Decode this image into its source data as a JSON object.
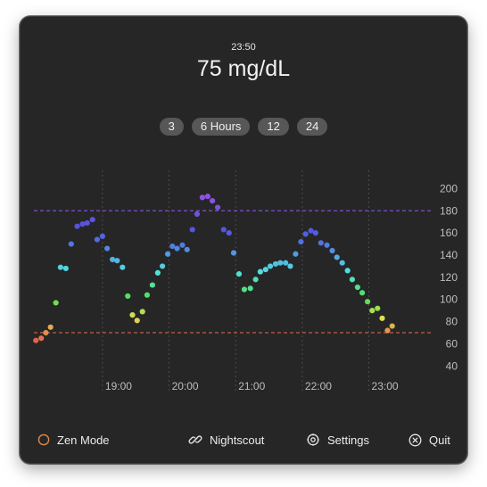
{
  "header": {
    "time": "23:50",
    "reading": "75 mg/dL"
  },
  "ranges": [
    {
      "label": "3"
    },
    {
      "label": "6 Hours"
    },
    {
      "label": "12"
    },
    {
      "label": "24"
    }
  ],
  "chart_data": {
    "type": "scatter",
    "y_ticks": [
      "200",
      "180",
      "160",
      "140",
      "120",
      "100",
      "80",
      "60",
      "40"
    ],
    "y_tick_values": [
      200,
      180,
      160,
      140,
      120,
      100,
      80,
      60,
      40
    ],
    "x_ticks": [
      "19:00",
      "20:00",
      "21:00",
      "22:00",
      "23:00"
    ],
    "x_tick_values": [
      19.0,
      20.0,
      21.0,
      22.0,
      23.0
    ],
    "xlim": [
      17.97,
      23.93
    ],
    "ylim": [
      33,
      210
    ],
    "high_threshold": 180,
    "low_threshold": 70,
    "grid": "vertical dashed at hours",
    "high_line_color": "#8b5cf6",
    "low_line_color": "#ef6a4a",
    "points": [
      [
        18.0,
        63
      ],
      [
        18.08,
        65
      ],
      [
        18.15,
        70
      ],
      [
        18.22,
        75
      ],
      [
        18.3,
        97
      ],
      [
        18.37,
        129
      ],
      [
        18.45,
        128
      ],
      [
        18.53,
        150
      ],
      [
        18.62,
        166
      ],
      [
        18.7,
        168
      ],
      [
        18.77,
        169
      ],
      [
        18.85,
        172
      ],
      [
        18.92,
        154
      ],
      [
        19.0,
        157
      ],
      [
        19.07,
        146
      ],
      [
        19.15,
        136
      ],
      [
        19.22,
        135
      ],
      [
        19.3,
        129
      ],
      [
        19.38,
        103
      ],
      [
        19.45,
        86
      ],
      [
        19.52,
        81
      ],
      [
        19.6,
        89
      ],
      [
        19.67,
        104
      ],
      [
        19.75,
        113
      ],
      [
        19.83,
        124
      ],
      [
        19.9,
        130
      ],
      [
        19.98,
        141
      ],
      [
        20.05,
        148
      ],
      [
        20.12,
        146
      ],
      [
        20.2,
        149
      ],
      [
        20.27,
        145
      ],
      [
        20.35,
        163
      ],
      [
        20.42,
        177
      ],
      [
        20.5,
        192
      ],
      [
        20.58,
        193
      ],
      [
        20.65,
        189
      ],
      [
        20.73,
        183
      ],
      [
        20.82,
        163
      ],
      [
        20.9,
        160
      ],
      [
        20.97,
        142
      ],
      [
        21.05,
        123
      ],
      [
        21.13,
        109
      ],
      [
        21.22,
        110
      ],
      [
        21.3,
        118
      ],
      [
        21.37,
        125
      ],
      [
        21.45,
        127
      ],
      [
        21.52,
        130
      ],
      [
        21.6,
        132
      ],
      [
        21.67,
        133
      ],
      [
        21.75,
        133
      ],
      [
        21.82,
        130
      ],
      [
        21.9,
        141
      ],
      [
        21.98,
        152
      ],
      [
        22.05,
        159
      ],
      [
        22.13,
        162
      ],
      [
        22.2,
        160
      ],
      [
        22.28,
        151
      ],
      [
        22.37,
        149
      ],
      [
        22.45,
        144
      ],
      [
        22.52,
        138
      ],
      [
        22.6,
        133
      ],
      [
        22.68,
        126
      ],
      [
        22.75,
        118
      ],
      [
        22.83,
        111
      ],
      [
        22.9,
        106
      ],
      [
        22.98,
        98
      ],
      [
        23.05,
        90
      ],
      [
        23.13,
        92
      ],
      [
        23.2,
        83
      ],
      [
        23.28,
        72
      ],
      [
        23.35,
        76
      ]
    ]
  },
  "footer": {
    "zen_label": "Zen Mode",
    "nightscout_label": "Nightscout",
    "settings_label": "Settings",
    "quit_label": "Quit"
  },
  "colors": {
    "panel_bg": "#262626",
    "pill_bg": "#575757",
    "zen_ring": "#e0884a"
  },
  "icons": {
    "zen": "circle-outline-icon",
    "nightscout": "link-icon",
    "settings": "gear-icon",
    "quit": "close-circle-icon"
  }
}
